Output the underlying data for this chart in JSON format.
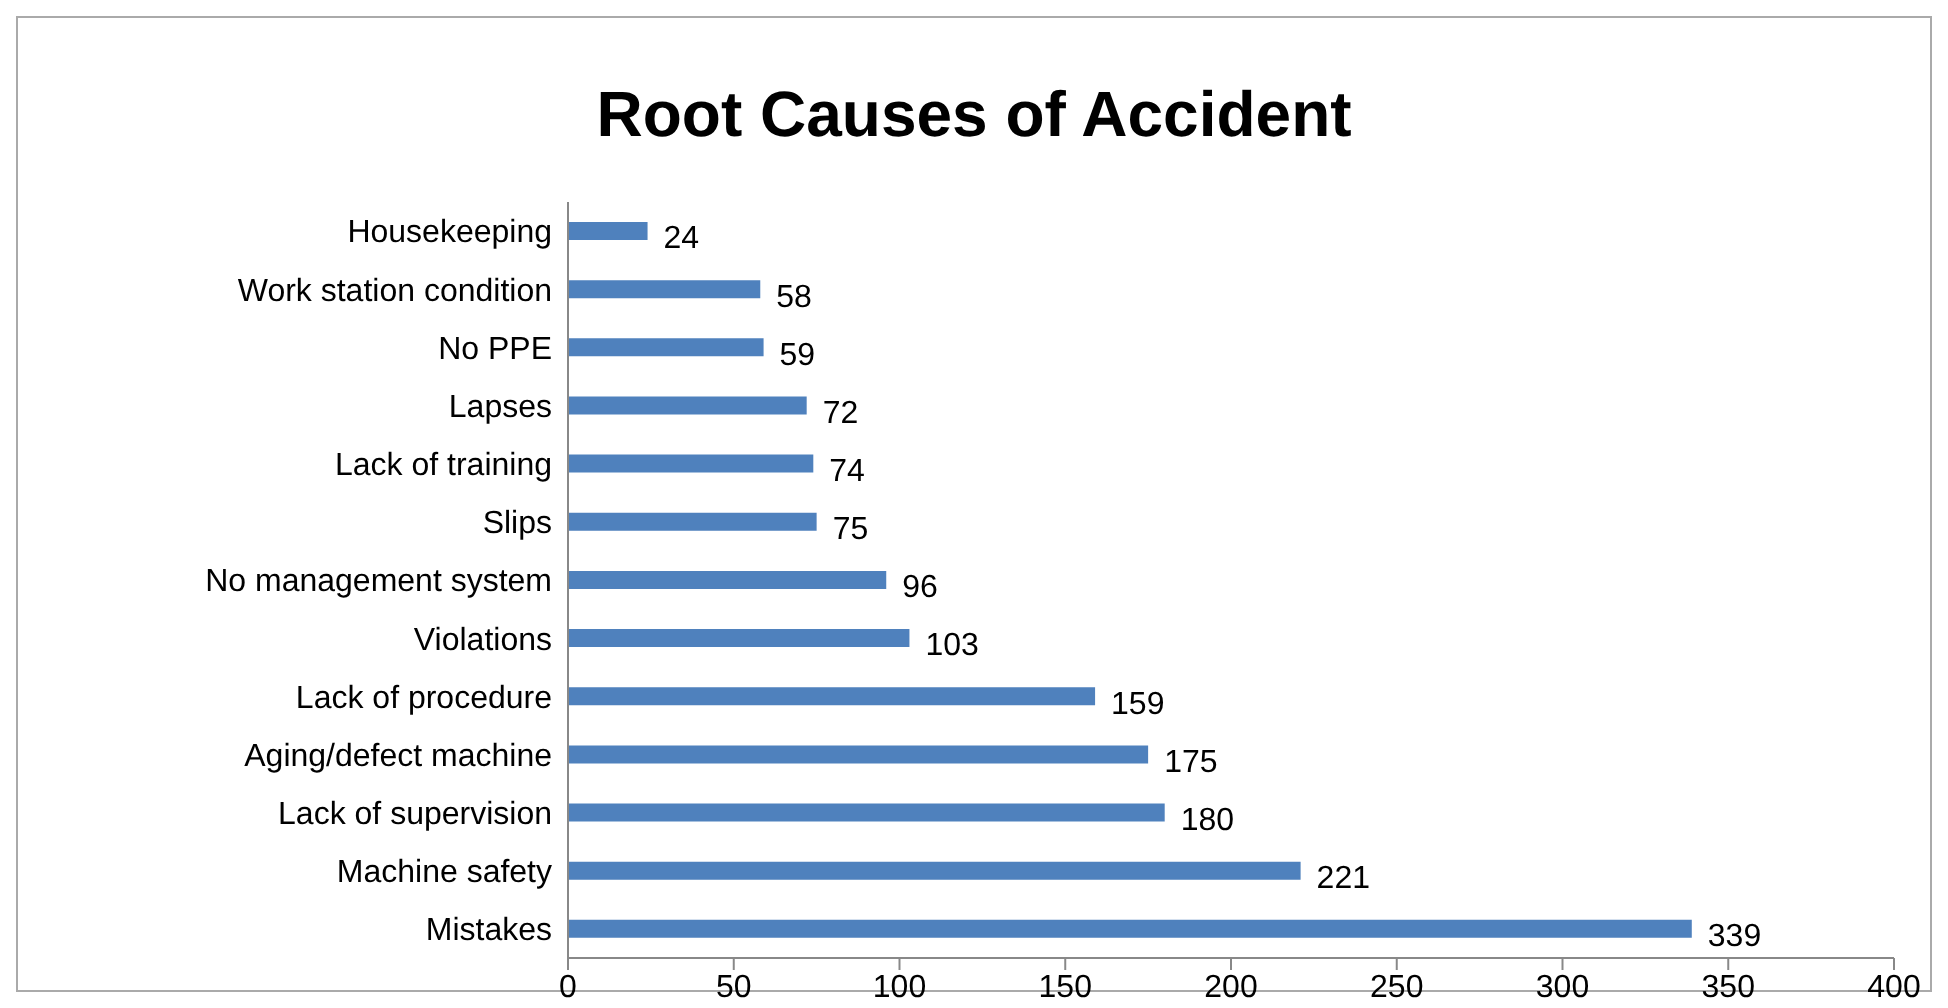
{
  "chart_data": {
    "type": "bar",
    "orientation": "horizontal",
    "title": "Root Causes of Accident",
    "categories": [
      "Housekeeping",
      "Work station condition",
      "No PPE",
      "Lapses",
      "Lack of training",
      "Slips",
      "No management system",
      "Violations",
      "Lack of procedure",
      "Aging/defect machine",
      "Lack of supervision",
      "Machine safety",
      "Mistakes"
    ],
    "values": [
      24,
      58,
      59,
      72,
      74,
      75,
      96,
      103,
      159,
      175,
      180,
      221,
      339
    ],
    "color": "#4f81bd",
    "xlim": [
      0,
      400
    ],
    "xticks": [
      0,
      50,
      100,
      150,
      200,
      250,
      300,
      350,
      400
    ],
    "grid": false,
    "legend": false,
    "data_labels": true
  }
}
